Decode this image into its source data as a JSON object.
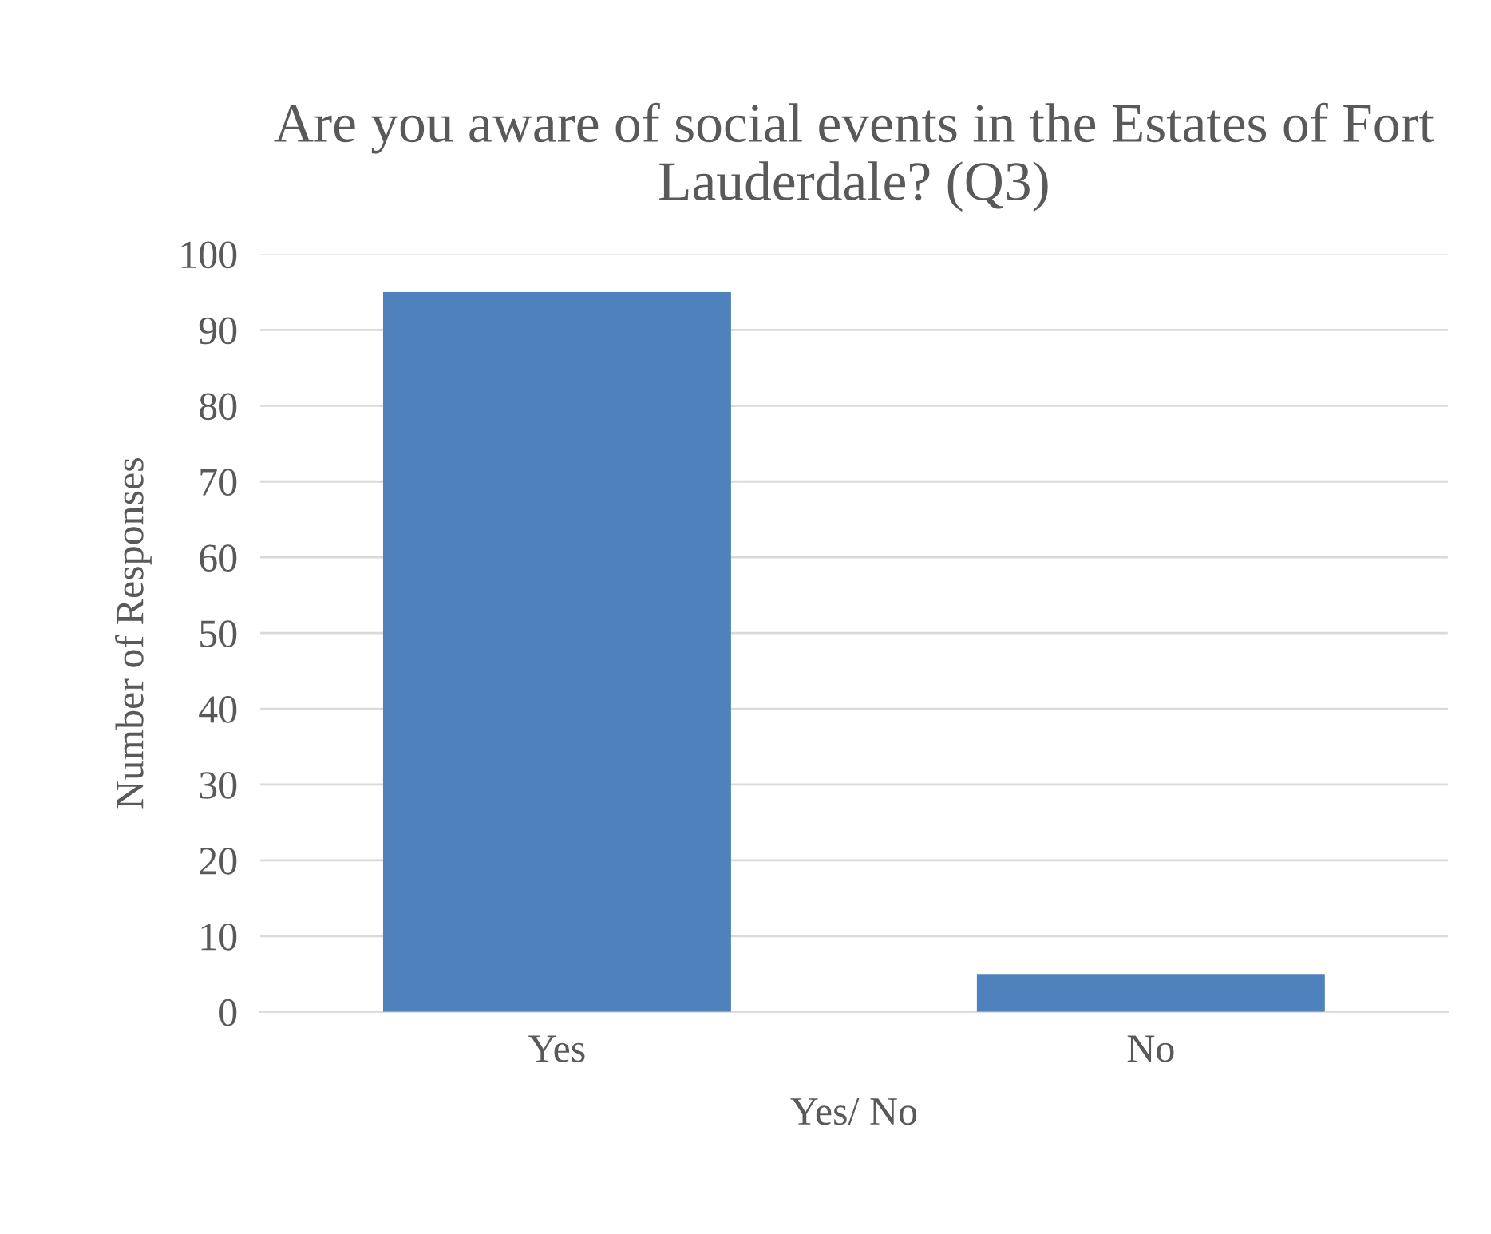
{
  "chart_data": {
    "type": "bar",
    "title": "Are you aware of social events in the Estates of Fort Lauderdale? (Q3)",
    "xlabel": "Yes/ No",
    "ylabel": "Number of Responses",
    "categories": [
      "Yes",
      "No"
    ],
    "values": [
      95,
      5
    ],
    "color": "#4f81bd",
    "ylim": [
      0,
      100
    ],
    "yticks": [
      0,
      10,
      20,
      30,
      40,
      50,
      60,
      70,
      80,
      90,
      100
    ],
    "grid": "y",
    "legend": false
  }
}
